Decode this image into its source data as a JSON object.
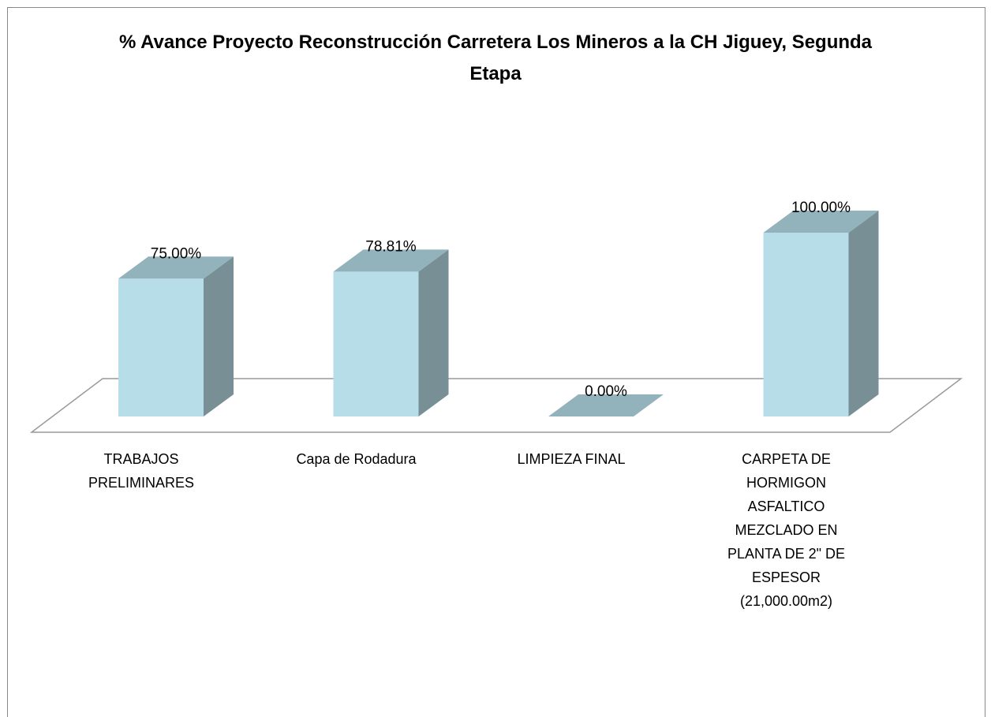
{
  "chart_data": {
    "type": "bar3d",
    "title": "% Avance Proyecto Reconstrucción Carretera Los Mineros a la CH Jiguey, Segunda Etapa",
    "categories": [
      "TRABAJOS PRELIMINARES",
      "Capa de Rodadura",
      "LIMPIEZA FINAL",
      "CARPETA DE HORMIGON ASFALTICO MEZCLADO EN PLANTA DE 2\" DE ESPESOR (21,000.00m2)"
    ],
    "values": [
      75,
      78.81,
      0,
      100
    ],
    "value_labels": [
      "75.00%",
      "78.81%",
      "0.00%",
      "100.00%"
    ],
    "color": "#b7dde8"
  }
}
